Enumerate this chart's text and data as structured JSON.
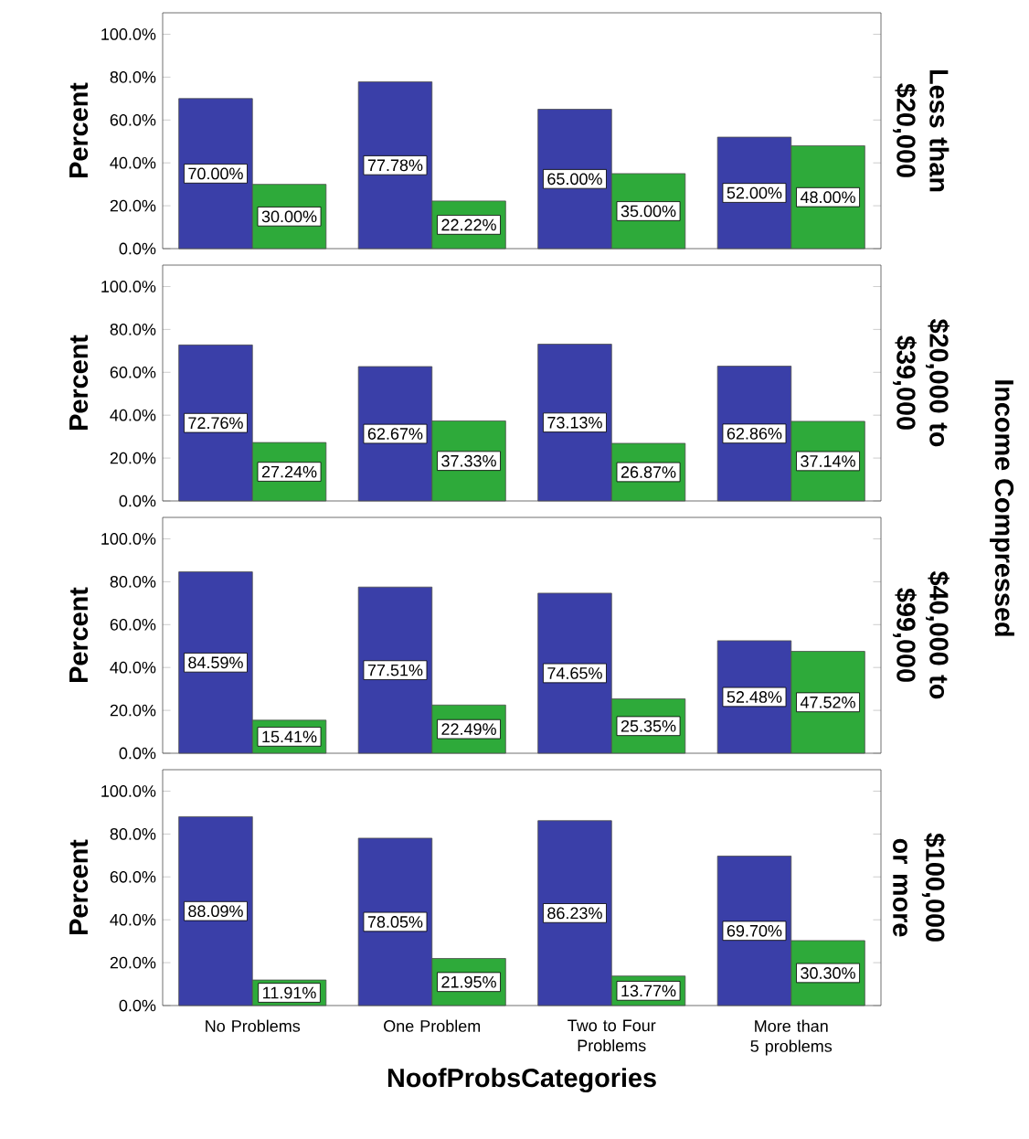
{
  "chart_data": [
    {
      "type": "bar",
      "title": "Less than $20,000",
      "ylabel": "Percent",
      "categories": [
        null,
        null,
        null,
        null
      ],
      "ylim": [
        0,
        110
      ],
      "yticks": [
        {
          "value": 0,
          "label": "0.0%"
        },
        {
          "value": 20,
          "label": "20.0%"
        },
        {
          "value": 40,
          "label": "40.0%"
        },
        {
          "value": 60,
          "label": "60.0%"
        },
        {
          "value": 80,
          "label": "80.0%"
        },
        {
          "value": 100,
          "label": "100.0%"
        }
      ],
      "tick_labels": "y",
      "grid": false,
      "series": [
        {
          "color": "#3a3fa8",
          "values": [
            70.0,
            77.78,
            65.0,
            52.0
          ],
          "value_labels": [
            "70.00%",
            "77.78%",
            "65.00%",
            "52.00%"
          ]
        },
        {
          "color": "#2eaa3a",
          "values": [
            30.0,
            22.22,
            35.0,
            48.0
          ],
          "value_labels": [
            "30.00%",
            "22.22%",
            "35.00%",
            "48.00%"
          ]
        }
      ]
    },
    {
      "type": "bar",
      "title": "$20,000 to $39,000",
      "ylabel": "Percent",
      "annotations": [
        "Income Compressed"
      ],
      "categories": [
        null,
        null,
        null,
        null
      ],
      "ylim": [
        0,
        110
      ],
      "yticks": [
        {
          "value": 0,
          "label": "0.0%"
        },
        {
          "value": 20,
          "label": "20.0%"
        },
        {
          "value": 40,
          "label": "40.0%"
        },
        {
          "value": 60,
          "label": "60.0%"
        },
        {
          "value": 80,
          "label": "80.0%"
        },
        {
          "value": 100,
          "label": "100.0%"
        }
      ],
      "tick_labels": "y",
      "grid": false,
      "series": [
        {
          "color": "#3a3fa8",
          "values": [
            72.76,
            62.67,
            73.13,
            62.86
          ],
          "value_labels": [
            "72.76%",
            "62.67%",
            "73.13%",
            "62.86%"
          ]
        },
        {
          "color": "#2eaa3a",
          "values": [
            27.24,
            37.33,
            26.87,
            37.14
          ],
          "value_labels": [
            "27.24%",
            "37.33%",
            "26.87%",
            "37.14%"
          ]
        }
      ]
    },
    {
      "type": "bar",
      "title": "$40,000 to $99,000",
      "ylabel": "Percent",
      "categories": [
        null,
        null,
        null,
        null
      ],
      "ylim": [
        0,
        110
      ],
      "yticks": [
        {
          "value": 0,
          "label": "0.0%"
        },
        {
          "value": 20,
          "label": "20.0%"
        },
        {
          "value": 40,
          "label": "40.0%"
        },
        {
          "value": 60,
          "label": "60.0%"
        },
        {
          "value": 80,
          "label": "80.0%"
        },
        {
          "value": 100,
          "label": "100.0%"
        }
      ],
      "tick_labels": "y",
      "grid": false,
      "series": [
        {
          "color": "#3a3fa8",
          "values": [
            84.59,
            77.51,
            74.65,
            52.48
          ],
          "value_labels": [
            "84.59%",
            "77.51%",
            "74.65%",
            "52.48%"
          ]
        },
        {
          "color": "#2eaa3a",
          "values": [
            15.41,
            22.49,
            25.35,
            47.52
          ],
          "value_labels": [
            "15.41%",
            "22.49%",
            "25.35%",
            "47.52%"
          ]
        }
      ]
    },
    {
      "type": "bar",
      "title": "$100,000 or more",
      "ylabel": "Percent",
      "xlabel": "NoofProbsCategories",
      "categories": [
        "No Problems",
        "One Problem",
        "Two to Four Problems",
        "More than 5 problems"
      ],
      "ylim": [
        0,
        110
      ],
      "yticks": [
        {
          "value": 0,
          "label": "0.0%"
        },
        {
          "value": 20,
          "label": "20.0%"
        },
        {
          "value": 40,
          "label": "40.0%"
        },
        {
          "value": 60,
          "label": "60.0%"
        },
        {
          "value": 80,
          "label": "80.0%"
        },
        {
          "value": 100,
          "label": "100.0%"
        }
      ],
      "grid": false,
      "series": [
        {
          "color": "#3a3fa8",
          "values": [
            88.09,
            78.05,
            86.23,
            69.7
          ],
          "value_labels": [
            "88.09%",
            "78.05%",
            "86.23%",
            "69.70%"
          ]
        },
        {
          "color": "#2eaa3a",
          "values": [
            11.91,
            21.95,
            13.77,
            30.3
          ],
          "value_labels": [
            "11.91%",
            "21.95%",
            "13.77%",
            "30.30%"
          ]
        }
      ]
    }
  ]
}
